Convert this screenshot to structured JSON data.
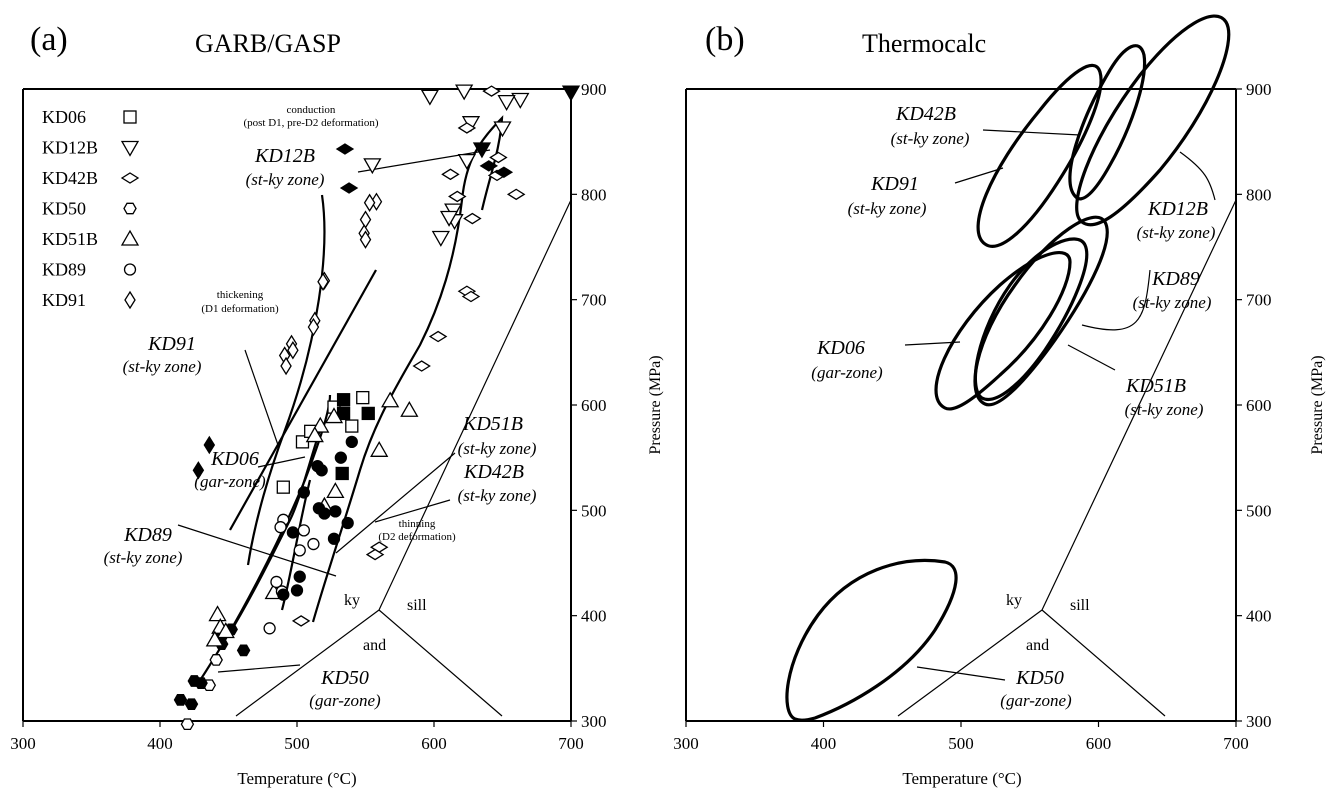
{
  "panels": {
    "a": {
      "letter": "(a)",
      "method": "GARB/GASP"
    },
    "b": {
      "letter": "(b)",
      "method": "Thermocalc"
    }
  },
  "axes": {
    "xlabel": "Temperature (°C)",
    "ylabel": "Pressure (MPa)",
    "xticks": [
      "300",
      "400",
      "500",
      "600",
      "700"
    ],
    "yticks": [
      "300",
      "400",
      "500",
      "600",
      "700",
      "800",
      "900"
    ]
  },
  "phase_labels": {
    "ky": "ky",
    "sill": "sill",
    "and": "and"
  },
  "panel_a_notes": {
    "conduction_1": "conduction",
    "conduction_2": "(post D1, pre-D2 deformation)",
    "thickening_1": "thickening",
    "thickening_2": "(D1 deformation)",
    "thinning_1": "thinning",
    "thinning_2": "(D2 deformation)"
  },
  "legend": [
    {
      "name": "KD06",
      "marker": "square"
    },
    {
      "name": "KD12B",
      "marker": "triangle-down"
    },
    {
      "name": "KD42B",
      "marker": "diamond-wide"
    },
    {
      "name": "KD50",
      "marker": "hexagon"
    },
    {
      "name": "KD51B",
      "marker": "triangle-up"
    },
    {
      "name": "KD89",
      "marker": "circle"
    },
    {
      "name": "KD91",
      "marker": "diamond-tall"
    }
  ],
  "sample_labels_a": [
    {
      "id": "KD12B_a",
      "name": "KD12B",
      "zone": "(st-ky zone)"
    },
    {
      "id": "KD91_a",
      "name": "KD91",
      "zone": "(st-ky zone)"
    },
    {
      "id": "KD06_a",
      "name": "KD06",
      "zone": "(gar-zone)"
    },
    {
      "id": "KD89_a",
      "name": "KD89",
      "zone": "(st-ky zone)"
    },
    {
      "id": "KD51B_a",
      "name": "KD51B",
      "zone": "(st-ky zone)"
    },
    {
      "id": "KD42B_a",
      "name": "KD42B",
      "zone": "(st-ky zone)"
    },
    {
      "id": "KD50_a",
      "name": "KD50",
      "zone": "(gar-zone)"
    }
  ],
  "sample_labels_b": [
    {
      "id": "KD42B_b",
      "name": "KD42B",
      "zone": "(st-ky zone)"
    },
    {
      "id": "KD91_b",
      "name": "KD91",
      "zone": "(st-ky zone)"
    },
    {
      "id": "KD12B_b",
      "name": "KD12B",
      "zone": "(st-ky zone)"
    },
    {
      "id": "KD89_b",
      "name": "KD89",
      "zone": "(st-ky zone)"
    },
    {
      "id": "KD06_b",
      "name": "KD06",
      "zone": "(gar-zone)"
    },
    {
      "id": "KD51B_b",
      "name": "KD51B",
      "zone": "(st-ky zone)"
    },
    {
      "id": "KD50_b",
      "name": "KD50",
      "zone": "(gar-zone)"
    }
  ],
  "chart_data": [
    {
      "type": "scatter",
      "title": "GARB/GASP",
      "xlabel": "Temperature (°C)",
      "ylabel": "Pressure (MPa)",
      "xlim": [
        300,
        700
      ],
      "ylim": [
        300,
        900
      ],
      "series": [
        {
          "name": "KD06",
          "marker": "square",
          "open": [
            [
              504,
              565
            ],
            [
              490,
              522
            ],
            [
              527,
              598
            ],
            [
              540,
              580
            ],
            [
              548,
              607
            ],
            [
              510,
              575
            ]
          ],
          "filled": [
            [
              534,
              605
            ],
            [
              534,
              592
            ],
            [
              552,
              592
            ],
            [
              533,
              535
            ]
          ]
        },
        {
          "name": "KD12B",
          "marker": "triangle-down",
          "open": [
            [
              622,
              898
            ],
            [
              597,
              893
            ],
            [
              663,
              890
            ],
            [
              653,
              888
            ],
            [
              650,
              863
            ],
            [
              627,
              868
            ],
            [
              624,
              832
            ],
            [
              555,
              828
            ],
            [
              614,
              785
            ],
            [
              615,
              775
            ],
            [
              605,
              759
            ],
            [
              611,
              778
            ]
          ],
          "filled": [
            [
              700,
              897
            ],
            [
              635,
              843
            ]
          ]
        },
        {
          "name": "KD42B",
          "marker": "diamond-wide",
          "open": [
            [
              642,
              898
            ],
            [
              624,
              863
            ],
            [
              647,
              835
            ],
            [
              612,
              819
            ],
            [
              646,
              818
            ],
            [
              660,
              800
            ],
            [
              617,
              798
            ],
            [
              628,
              777
            ],
            [
              624,
              708
            ],
            [
              627,
              703
            ],
            [
              603,
              665
            ],
            [
              591,
              637
            ],
            [
              560,
              465
            ],
            [
              557,
              458
            ],
            [
              503,
              395
            ]
          ],
          "filled": [
            [
              535,
              843
            ],
            [
              538,
              806
            ],
            [
              651,
              821
            ],
            [
              640,
              827
            ]
          ]
        },
        {
          "name": "KD50",
          "marker": "hexagon",
          "open": [
            [
              441,
              358
            ],
            [
              436,
              334
            ],
            [
              420,
              297
            ]
          ],
          "filled": [
            [
              425,
              338
            ],
            [
              430,
              336
            ],
            [
              415,
              320
            ],
            [
              423,
              316
            ],
            [
              452,
              387
            ],
            [
              461,
              367
            ],
            [
              444,
              380
            ],
            [
              445,
              373
            ]
          ]
        },
        {
          "name": "KD51B",
          "marker": "triangle-up",
          "open": [
            [
              560,
              557
            ],
            [
              568,
              604
            ],
            [
              582,
              595
            ],
            [
              517,
              580
            ],
            [
              527,
              589
            ],
            [
              513,
              571
            ],
            [
              528,
              518
            ],
            [
              520,
              504
            ],
            [
              483,
              422
            ],
            [
              442,
              401
            ],
            [
              444,
              389
            ],
            [
              448,
              385
            ],
            [
              440,
              377
            ]
          ],
          "filled": []
        },
        {
          "name": "KD89",
          "marker": "circle",
          "open": [
            [
              490,
              491
            ],
            [
              488,
              484
            ],
            [
              505,
              481
            ],
            [
              512,
              468
            ],
            [
              502,
              462
            ],
            [
              485,
              432
            ],
            [
              489,
              423
            ],
            [
              480,
              388
            ]
          ],
          "filled": [
            [
              540,
              565
            ],
            [
              532,
              550
            ],
            [
              518,
              538
            ],
            [
              515,
              542
            ],
            [
              505,
              517
            ],
            [
              520,
              497
            ],
            [
              516,
              502
            ],
            [
              497,
              479
            ],
            [
              528,
              499
            ],
            [
              537,
              488
            ],
            [
              527,
              473
            ],
            [
              502,
              437
            ],
            [
              500,
              424
            ],
            [
              490,
              420
            ]
          ]
        },
        {
          "name": "KD91",
          "marker": "diamond-tall",
          "open": [
            [
              558,
              793
            ],
            [
              553,
              792
            ],
            [
              550,
              776
            ],
            [
              549,
              763
            ],
            [
              550,
              757
            ],
            [
              520,
              718
            ],
            [
              519,
              717
            ],
            [
              513,
              680
            ],
            [
              512,
              674
            ],
            [
              496,
              658
            ],
            [
              497,
              652
            ],
            [
              491,
              647
            ],
            [
              492,
              637
            ]
          ],
          "filled": [
            [
              436,
              562
            ],
            [
              428,
              538
            ]
          ]
        }
      ]
    },
    {
      "type": "scatter",
      "title": "Thermocalc",
      "xlabel": "Temperature (°C)",
      "ylabel": "Pressure (MPa)",
      "xlim": [
        300,
        700
      ],
      "ylim": [
        300,
        900
      ],
      "series": [
        {
          "name": "KD42B",
          "shape": "error-ellipse",
          "center": [
            645,
            830
          ]
        },
        {
          "name": "KD91",
          "shape": "error-ellipse",
          "center": [
            568,
            843
          ]
        },
        {
          "name": "KD12B",
          "shape": "error-ellipse",
          "center": [
            635,
            812
          ]
        },
        {
          "name": "KD89",
          "shape": "error-ellipse",
          "center": [
            540,
            670
          ]
        },
        {
          "name": "KD06",
          "shape": "error-ellipse",
          "center": [
            520,
            650
          ]
        },
        {
          "name": "KD51B",
          "shape": "error-ellipse",
          "center": [
            541,
            665
          ]
        },
        {
          "name": "KD50",
          "shape": "error-ellipse",
          "center": [
            445,
            375
          ]
        }
      ]
    }
  ]
}
